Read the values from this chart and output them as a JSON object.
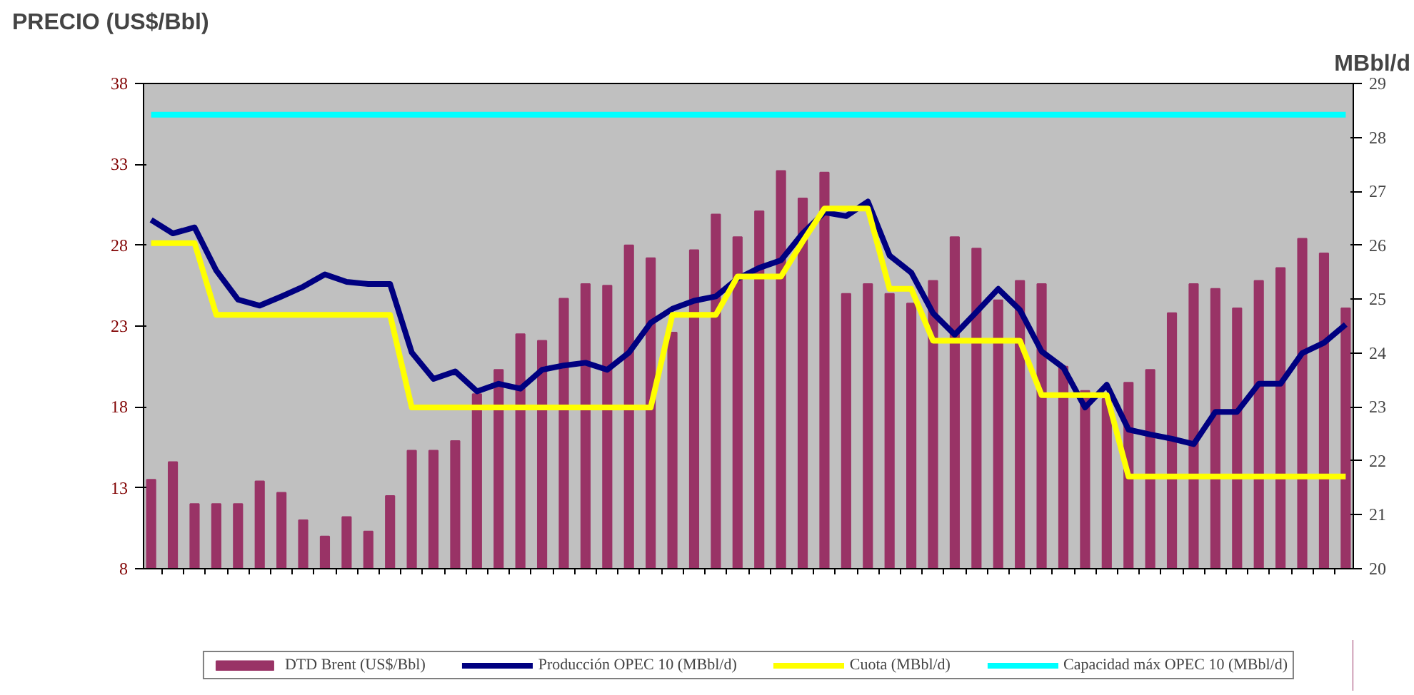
{
  "chart_data": {
    "type": "bar",
    "ylabel": "PRECIO (US$/Bbl)",
    "y2label": "MBbl/d",
    "categories": [
      null,
      null,
      null,
      null,
      null,
      null,
      null,
      null,
      null,
      null,
      null,
      null,
      null,
      null,
      null,
      null,
      null,
      null,
      null,
      null,
      null,
      null,
      null,
      null,
      null,
      null,
      null,
      null,
      null,
      null,
      null,
      null,
      null,
      null,
      null,
      null,
      null,
      null,
      null,
      null,
      null,
      null,
      null,
      null,
      null,
      null,
      null,
      null,
      null,
      null,
      null,
      null,
      null,
      null,
      null,
      null
    ],
    "series": [
      {
        "name": "DTD Brent (US$/Bbl)",
        "color": "#993366",
        "values": [
          13.5,
          14.6,
          12.0,
          12.0,
          12.0,
          13.4,
          12.7,
          11.0,
          10.0,
          11.2,
          10.3,
          12.5,
          15.3,
          15.3,
          15.9,
          18.8,
          20.3,
          22.5,
          22.1,
          24.7,
          25.6,
          25.5,
          28.0,
          27.2,
          22.6,
          27.7,
          29.9,
          28.5,
          30.1,
          32.6,
          30.9,
          32.5,
          25.0,
          25.6,
          25.0,
          24.4,
          25.8,
          28.5,
          27.8,
          24.6,
          25.8,
          25.6,
          20.5,
          19.0,
          18.5,
          19.5,
          20.3,
          23.8,
          25.6,
          25.3,
          24.1,
          25.8,
          26.6,
          28.4,
          27.5,
          24.1
        ]
      },
      {
        "name": "Producción OPEC 10 (MBbl/d)",
        "type": "line",
        "axis": "y2",
        "color": "#000080",
        "values": [
          26.47,
          26.22,
          26.33,
          25.53,
          24.99,
          24.88,
          25.05,
          25.23,
          25.46,
          25.32,
          25.28,
          25.28,
          24.01,
          23.52,
          23.66,
          23.29,
          23.43,
          23.34,
          23.69,
          23.77,
          23.82,
          23.69,
          24.01,
          24.56,
          24.82,
          24.97,
          25.05,
          25.38,
          25.58,
          25.72,
          26.22,
          26.61,
          26.54,
          26.81,
          25.81,
          25.49,
          24.74,
          24.34,
          24.76,
          25.19,
          24.8,
          24.03,
          23.73,
          22.99,
          23.41,
          22.58,
          22.49,
          22.41,
          22.31,
          22.91,
          22.91,
          23.43,
          23.43,
          24.0,
          24.19,
          24.53
        ]
      },
      {
        "name": "Cuota (MBbl/d)",
        "type": "line",
        "axis": "y2",
        "color": "#ffff00",
        "values": [
          26.04,
          26.04,
          26.04,
          24.71,
          24.71,
          24.71,
          24.71,
          24.71,
          24.71,
          24.71,
          24.71,
          24.71,
          22.99,
          22.99,
          22.99,
          22.99,
          22.99,
          22.99,
          22.99,
          22.99,
          22.99,
          22.99,
          22.99,
          22.99,
          24.71,
          24.71,
          24.71,
          25.42,
          25.42,
          25.42,
          26.07,
          26.68,
          26.68,
          26.68,
          25.19,
          25.19,
          24.23,
          24.23,
          24.23,
          24.23,
          24.23,
          23.22,
          23.22,
          23.22,
          23.22,
          21.71,
          21.71,
          21.71,
          21.71,
          21.71,
          21.71,
          21.71,
          21.71,
          21.71,
          21.71,
          21.71
        ]
      },
      {
        "name": "Capacidad máx OPEC 10 (MBbl/d)",
        "type": "line",
        "axis": "y2",
        "color": "#00ffff",
        "values": [
          28.42,
          28.42,
          28.42,
          28.42,
          28.42,
          28.42,
          28.42,
          28.42,
          28.42,
          28.42,
          28.42,
          28.42,
          28.42,
          28.42,
          28.42,
          28.42,
          28.42,
          28.42,
          28.42,
          28.42,
          28.42,
          28.42,
          28.42,
          28.42,
          28.42,
          28.42,
          28.42,
          28.42,
          28.42,
          28.42,
          28.42,
          28.42,
          28.42,
          28.42,
          28.42,
          28.42,
          28.42,
          28.42,
          28.42,
          28.42,
          28.42,
          28.42,
          28.42,
          28.42,
          28.42,
          28.42,
          28.42,
          28.42,
          28.42,
          28.42,
          28.42,
          28.42,
          28.42,
          28.42,
          28.42,
          28.42
        ]
      }
    ],
    "ylim": [
      8,
      38
    ],
    "yticks": [
      8,
      13,
      18,
      23,
      28,
      33,
      38
    ],
    "y2lim": [
      20,
      29
    ],
    "y2ticks": [
      20,
      21,
      22,
      23,
      24,
      25,
      26,
      27,
      28,
      29
    ],
    "grid": false,
    "legend": "bottom"
  }
}
